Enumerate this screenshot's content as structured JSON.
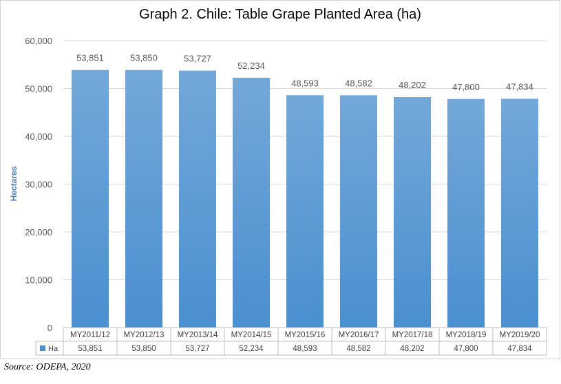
{
  "colors": {
    "bar_top": "#73a8d9",
    "bar_bottom": "#4a8fd0",
    "axis_text": "#595959",
    "ylabel_text": "#4f7fb7",
    "grid": "#d9d9d9",
    "border": "#bfbfbf"
  },
  "chart_data": {
    "type": "bar",
    "title": "Graph 2. Chile: Table Grape Planted Area (ha)",
    "xlabel": "",
    "ylabel": "Hectares",
    "ylim": [
      0,
      60000
    ],
    "yticks": [
      "0",
      "10,000",
      "20,000",
      "30,000",
      "40,000",
      "50,000",
      "60,000"
    ],
    "grid": true,
    "categories": [
      "MY2011/12",
      "MY2012/13",
      "MY2013/14",
      "MY2014/15",
      "MY2015/16",
      "MY2016/17",
      "MY2017/18",
      "MY2018/19",
      "MY2019/20"
    ],
    "series": [
      {
        "name": "Ha",
        "values": [
          53851,
          53850,
          53727,
          52234,
          48593,
          48582,
          48202,
          47800,
          47834
        ],
        "labels": [
          "53,851",
          "53,850",
          "53,727",
          "52,234",
          "48,593",
          "48,582",
          "48,202",
          "47,800",
          "47,834"
        ]
      }
    ],
    "data_table": true
  },
  "source": "Source: ODEPA, 2020"
}
